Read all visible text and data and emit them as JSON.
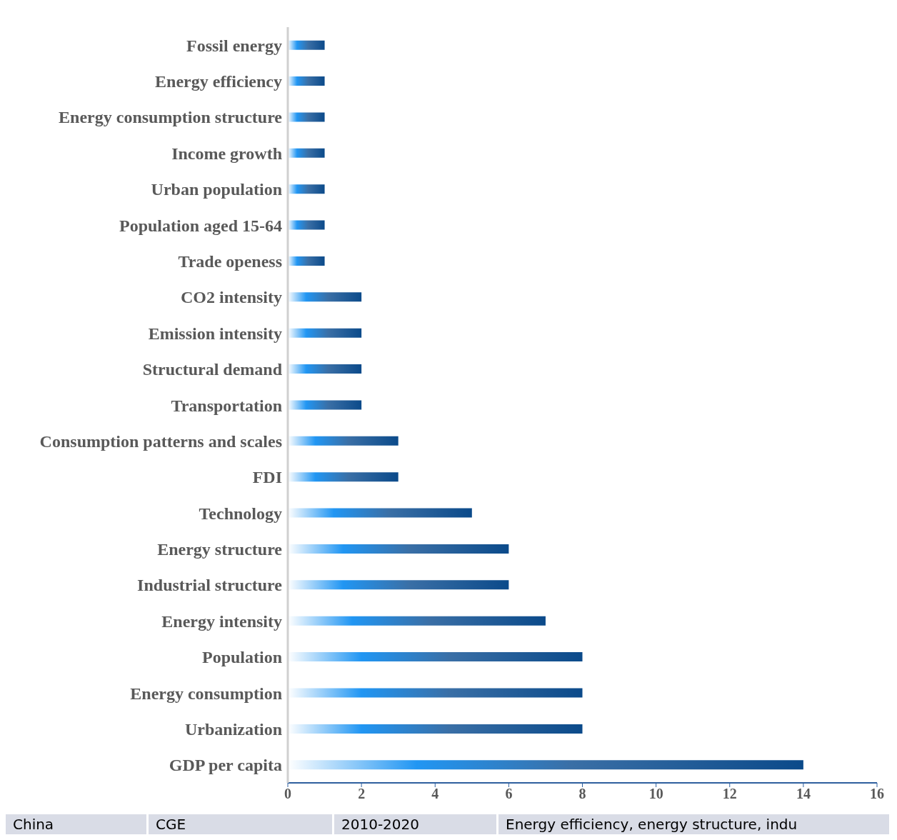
{
  "chart_data": {
    "type": "bar",
    "orientation": "horizontal",
    "categories": [
      "Fossil energy",
      "Energy efficiency",
      "Energy consumption structure",
      "Income growth",
      "Urban population",
      "Population aged 15-64",
      "Trade openess",
      "CO2 intensity",
      "Emission intensity",
      "Structural demand",
      "Transportation",
      "Consumption patterns and scales",
      "FDI",
      "Technology",
      "Energy structure",
      "Industrial structure",
      "Energy intensity",
      "Population",
      "Energy consumption",
      "Urbanization",
      "GDP per capita"
    ],
    "values": [
      1,
      1,
      1,
      1,
      1,
      1,
      1,
      2,
      2,
      2,
      2,
      3,
      3,
      5,
      6,
      6,
      7,
      8,
      8,
      8,
      14
    ],
    "color": "#0b4a8a",
    "xlim": [
      0,
      16
    ],
    "xticks": [
      0,
      2,
      4,
      6,
      8,
      10,
      12,
      14,
      16
    ],
    "annotations": [
      "China",
      "CGE",
      "2010-2020",
      "Energy efficiency, energy structure, indu"
    ]
  }
}
